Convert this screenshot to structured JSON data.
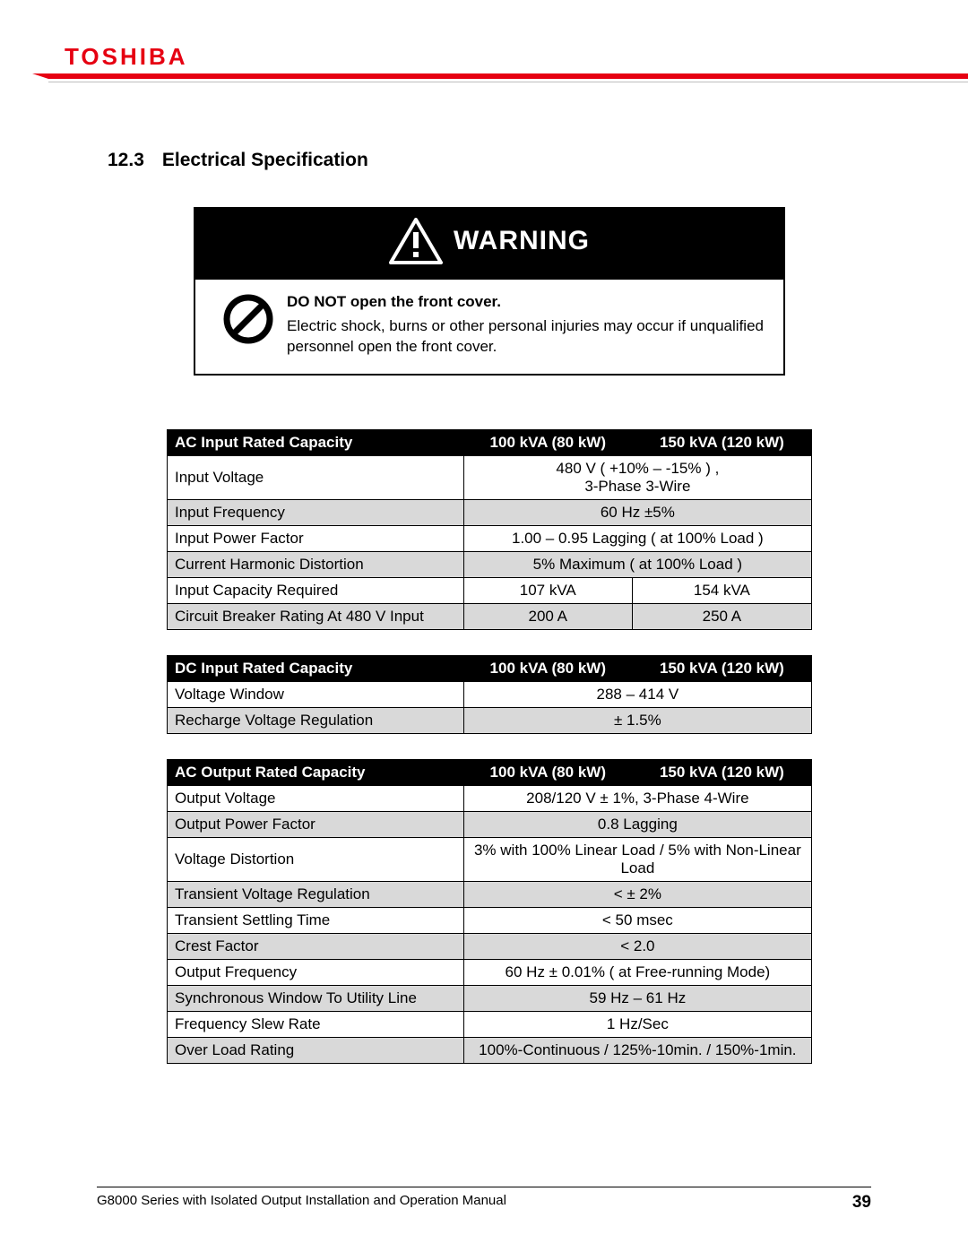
{
  "brand": "TOSHIBA",
  "colors": {
    "brand_red": "#e60012",
    "grey_rule": "#bfbfbf",
    "table_grey": "#d9d9d9"
  },
  "section": {
    "number": "12.3",
    "title": "Electrical Specification"
  },
  "warning": {
    "header": "WARNING",
    "bold": "DO NOT open the front cover.",
    "body": "Electric shock, burns or other personal injuries may occur if unqualified personnel open the front cover."
  },
  "tables": [
    {
      "title": "AC Input Rated Capacity",
      "cols": [
        "100 kVA (80 kW)",
        "150 kVA (120 kW)"
      ],
      "rows": [
        {
          "label": "Input Voltage",
          "span": true,
          "value": "480 V ( +10%  –  -15% ) ,\n3-Phase 3-Wire",
          "grey": false
        },
        {
          "label": "Input Frequency",
          "span": true,
          "value": "60 Hz ±5%",
          "grey": true
        },
        {
          "label": "Input Power Factor",
          "span": true,
          "value": "1.00  –  0.95 Lagging ( at 100% Load )",
          "grey": false
        },
        {
          "label": "Current Harmonic Distortion",
          "span": true,
          "value": "5% Maximum ( at 100% Load )",
          "grey": true
        },
        {
          "label": "Input Capacity Required",
          "span": false,
          "values": [
            "107 kVA",
            "154 kVA"
          ],
          "grey": false
        },
        {
          "label": "Circuit Breaker Rating At 480 V Input",
          "span": false,
          "values": [
            "200 A",
            "250 A"
          ],
          "grey": true
        }
      ]
    },
    {
      "title": "DC Input Rated Capacity",
      "cols": [
        "100 kVA (80 kW)",
        "150 kVA (120 kW)"
      ],
      "rows": [
        {
          "label": "Voltage Window",
          "span": true,
          "value": "288  –  414 V",
          "grey": false
        },
        {
          "label": "Recharge Voltage Regulation",
          "span": true,
          "value": "± 1.5%",
          "grey": true
        }
      ]
    },
    {
      "title": "AC Output Rated Capacity",
      "cols": [
        "100 kVA (80 kW)",
        "150 kVA (120 kW)"
      ],
      "rows": [
        {
          "label": "Output Voltage",
          "span": true,
          "value": "208/120 V ± 1%, 3-Phase 4-Wire",
          "grey": false
        },
        {
          "label": "Output Power Factor",
          "span": true,
          "value": "0.8 Lagging",
          "grey": true
        },
        {
          "label": "Voltage Distortion",
          "span": true,
          "value": "3% with 100% Linear Load / 5% with Non-Linear Load",
          "grey": false
        },
        {
          "label": "Transient Voltage Regulation",
          "span": true,
          "value": "< ± 2%",
          "grey": true
        },
        {
          "label": "Transient Settling Time",
          "span": true,
          "value": "< 50 msec",
          "grey": false
        },
        {
          "label": "Crest Factor",
          "span": true,
          "value": "< 2.0",
          "grey": true
        },
        {
          "label": "Output Frequency",
          "span": true,
          "value": "60 Hz ± 0.01% ( at Free-running Mode)",
          "grey": false
        },
        {
          "label": "Synchronous Window To Utility Line",
          "span": true,
          "value": "59 Hz  –  61 Hz",
          "grey": true
        },
        {
          "label": "Frequency Slew Rate",
          "span": true,
          "value": "1 Hz/Sec",
          "grey": false
        },
        {
          "label": "Over Load Rating",
          "span": true,
          "value": "100%-Continuous / 125%-10min. / 150%-1min.",
          "grey": true
        }
      ]
    }
  ],
  "footer": {
    "text": "G8000 Series with Isolated Output Installation and Operation Manual",
    "page": "39"
  }
}
